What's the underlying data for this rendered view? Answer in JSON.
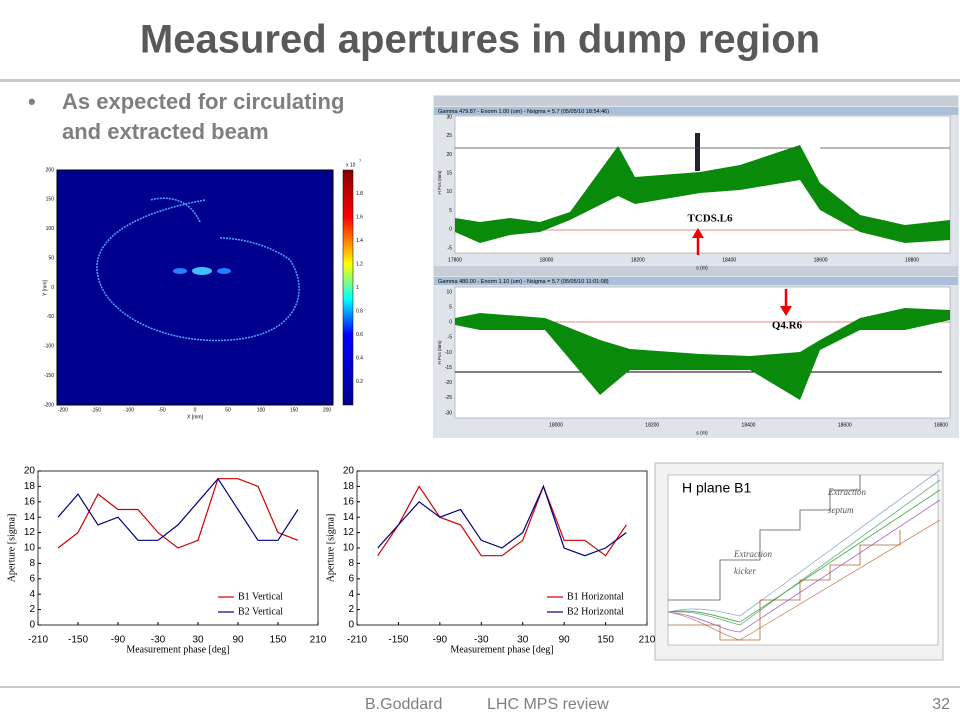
{
  "title": "Measured apertures in dump region",
  "bullet": {
    "marker": "•",
    "lines": [
      "As expected for circulating",
      "and extracted beam"
    ]
  },
  "footer": {
    "author": "B.Goddard",
    "event": "LHC MPS review",
    "page": "32"
  },
  "heatmap": {
    "xlabel": "X [mm]",
    "ylabel": "Y [mm]",
    "xticks": [
      -200,
      -150,
      -100,
      -50,
      0,
      50,
      100,
      150,
      200
    ],
    "yticks": [
      200,
      150,
      100,
      50,
      0,
      -50,
      -100,
      -150,
      -200
    ],
    "cbar_ticks": [
      0.2,
      0.4,
      0.6,
      0.8,
      1,
      1.2,
      1.4,
      1.6,
      1.8
    ],
    "cbar_scale": "x 10",
    "cbar_exp": "7"
  },
  "screenshot": {
    "upper": {
      "header": "Gamma 479.87 - Enorm 1.00 (um) - Nsigma = 5.7 (05/05/10 18:54:46)",
      "xticks": [
        17800,
        18000,
        18200,
        18400,
        18600,
        18800
      ],
      "yticks": [
        30,
        25,
        20,
        15,
        10,
        5,
        0,
        -5
      ],
      "xlabel": "s (m)",
      "ylabel": "H Pos (mm)",
      "marker": "TCDS.L6"
    },
    "lower": {
      "header": "Gamma 480.00 - Enorm 1.10 (um) - Nsigma = 5.7 (05/05/10 11:01:08)",
      "xticks": [
        18000,
        18200,
        18400,
        18600,
        18800
      ],
      "yticks": [
        10,
        5,
        0,
        -5,
        -10,
        -15,
        -20,
        -25,
        -30
      ],
      "xlabel": "s (m)",
      "ylabel": "H Pos (mm)",
      "marker": "Q4.R6"
    }
  },
  "tracking": {
    "title": "H plane B1",
    "septum": [
      "Extraction",
      "septum"
    ],
    "kicker": [
      "Extraction",
      "kicker"
    ]
  },
  "chart_data": [
    {
      "type": "line",
      "xlabel": "Measurement phase [deg]",
      "ylabel": "Aperture [sigma]",
      "x": [
        -180,
        -150,
        -120,
        -90,
        -60,
        -30,
        0,
        30,
        60,
        90,
        120,
        150,
        180
      ],
      "series": [
        {
          "name": "B1 Vertical",
          "color": "#d00000",
          "values": [
            10,
            12,
            17,
            15,
            15,
            12,
            10,
            11,
            19,
            19,
            18,
            12,
            11
          ]
        },
        {
          "name": "B2 Vertical",
          "color": "#000080",
          "values": [
            14,
            17,
            13,
            14,
            11,
            11,
            13,
            16,
            19,
            15,
            11,
            11,
            15
          ]
        }
      ],
      "xlim": [
        -210,
        210
      ],
      "ylim": [
        0,
        20
      ],
      "xticks": [
        -210,
        -150,
        -90,
        -30,
        30,
        90,
        150,
        210
      ],
      "yticks": [
        0,
        2,
        4,
        6,
        8,
        10,
        12,
        14,
        16,
        18,
        20
      ]
    },
    {
      "type": "line",
      "xlabel": "Measurement phase [deg]",
      "ylabel": "Aperture [sigma]",
      "x": [
        -180,
        -150,
        -120,
        -90,
        -60,
        -30,
        0,
        30,
        60,
        90,
        120,
        150,
        180
      ],
      "series": [
        {
          "name": "B1 Horizontal",
          "color": "#d00000",
          "values": [
            9,
            13,
            18,
            14,
            13,
            9,
            9,
            11,
            18,
            11,
            11,
            9,
            13
          ]
        },
        {
          "name": "B2 Horizontal",
          "color": "#000080",
          "values": [
            10,
            13,
            16,
            14,
            15,
            11,
            10,
            12,
            18,
            10,
            9,
            10,
            12
          ]
        }
      ],
      "xlim": [
        -210,
        210
      ],
      "ylim": [
        0,
        20
      ],
      "xticks": [
        -210,
        -150,
        -90,
        -30,
        30,
        90,
        150,
        210
      ],
      "yticks": [
        0,
        2,
        4,
        6,
        8,
        10,
        12,
        14,
        16,
        18,
        20
      ]
    }
  ]
}
